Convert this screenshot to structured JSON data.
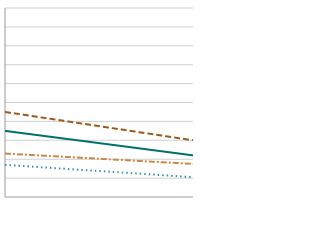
{
  "chart_data": {
    "type": "line",
    "categories": [
      null,
      null
    ],
    "ylim": [
      0,
      10
    ],
    "yticks": [
      0,
      1,
      2,
      3,
      4,
      5,
      6,
      7,
      8,
      9,
      10
    ],
    "grid": true,
    "series": [
      {
        "color": "#9c5a1d",
        "dash": "6,3",
        "values": [
          4.5,
          3.0
        ]
      },
      {
        "color": "#00706b",
        "dash": "none",
        "values": [
          3.5,
          2.2
        ]
      },
      {
        "color": "#c8894a",
        "dash": "6,2,2,2",
        "values": [
          2.3,
          1.75
        ]
      },
      {
        "color": "#3f8fa3",
        "dash": "1.5,3",
        "values": [
          1.7,
          1.05
        ]
      }
    ]
  }
}
